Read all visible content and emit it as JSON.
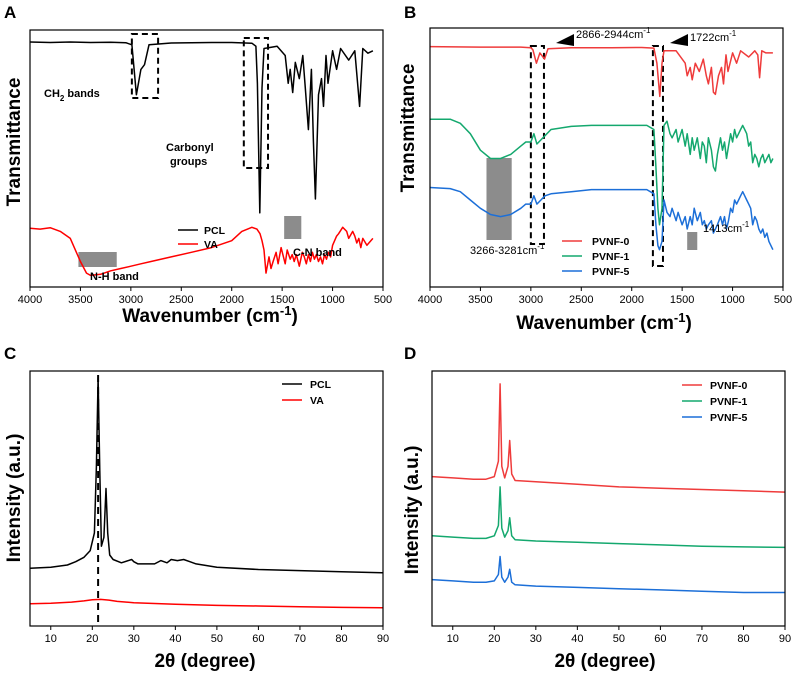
{
  "chart_data": [
    {
      "panel": "A",
      "type": "line",
      "title": "",
      "xlabel": "Wavenumber (cm-1)",
      "ylabel": "Transmittance",
      "xlim": [
        4000,
        500
      ],
      "xticks": [
        4000,
        3500,
        3000,
        2500,
        2000,
        1500,
        1000,
        500
      ],
      "yticks_shown": false,
      "legend": "bottom-right",
      "series": [
        {
          "name": "PCL",
          "color": "#000000",
          "x": [
            4000,
            3800,
            3600,
            3400,
            3200,
            3050,
            2990,
            2945,
            2900,
            2865,
            2820,
            2600,
            2200,
            2000,
            1800,
            1760,
            1745,
            1722,
            1700,
            1680,
            1550,
            1470,
            1440,
            1420,
            1395,
            1370,
            1330,
            1295,
            1270,
            1240,
            1210,
            1190,
            1170,
            1140,
            1110,
            1090,
            1065,
            1045,
            1000,
            960,
            920,
            840,
            780,
            732,
            700,
            650,
            600
          ],
          "values": [
            97.8,
            97.6,
            97.8,
            97.6,
            97.7,
            97.5,
            96.6,
            75.0,
            86.0,
            88.0,
            96.6,
            97.4,
            97.6,
            97.6,
            97.3,
            96.0,
            80.0,
            24.0,
            78.0,
            95.0,
            96.0,
            92.0,
            80.0,
            86.0,
            76.0,
            89.0,
            82.0,
            92.0,
            78.0,
            60.0,
            86.0,
            55.0,
            30.0,
            75.0,
            82.0,
            70.0,
            92.0,
            80.0,
            94.0,
            86.0,
            95.0,
            90.0,
            94.0,
            70.0,
            95.0,
            93.0,
            94.0
          ]
        },
        {
          "name": "VA",
          "color": "#ff0000",
          "x": [
            4000,
            3900,
            3800,
            3700,
            3600,
            3500,
            3440,
            3400,
            3300,
            3200,
            3100,
            3000,
            2900,
            2800,
            2600,
            2400,
            2200,
            2000,
            1900,
            1800,
            1750,
            1720,
            1700,
            1680,
            1660,
            1630,
            1610,
            1590,
            1560,
            1540,
            1510,
            1470,
            1450,
            1420,
            1400,
            1380,
            1360,
            1330,
            1300,
            1280,
            1260,
            1240,
            1220,
            1200,
            1180,
            1160,
            1140,
            1120,
            1100,
            1080,
            1060,
            1040,
            1020,
            1000,
            980,
            960,
            940,
            900,
            860,
            840,
            800,
            780,
            760,
            740,
            720,
            700,
            660,
            600
          ],
          "values": [
            17.4,
            17.0,
            17.6,
            16.0,
            13.0,
            3.0,
            -2.0,
            -3.0,
            -2.5,
            -1.0,
            0.0,
            1.0,
            2.0,
            3.0,
            5.0,
            7.0,
            9.0,
            12.0,
            16.0,
            17.8,
            17.0,
            15.0,
            12.0,
            8.0,
            -2.0,
            5.0,
            0.0,
            3.0,
            7.0,
            2.0,
            9.0,
            2.0,
            8.0,
            4.0,
            6.0,
            3.0,
            6.0,
            1.0,
            7.0,
            5.0,
            2.0,
            6.0,
            3.0,
            7.0,
            4.0,
            6.0,
            3.0,
            5.0,
            2.0,
            6.0,
            4.0,
            7.0,
            5.0,
            10.0,
            12.0,
            14.0,
            15.0,
            17.8,
            16.0,
            13.0,
            16.0,
            14.0,
            11.0,
            13.0,
            9.0,
            13.0,
            10.0,
            13.0
          ]
        }
      ],
      "annotations": {
        "ch2": "CH",
        "ch2_sub": "2",
        "ch2_rest": " bands",
        "carbonyl_1": "Carbonyl",
        "carbonyl_2": "groups",
        "nh": "N-H band",
        "cn": "C-N band"
      },
      "annotation_ranges": {
        "ch2_box_x": [
          2990,
          2730
        ],
        "carbonyl_box_x": [
          1880,
          1640
        ],
        "nh_x": [
          3520,
          3140
        ],
        "cn_x": [
          1480,
          1310
        ]
      }
    },
    {
      "panel": "B",
      "type": "line",
      "title": "",
      "xlabel": "Wavenumber (cm-1)",
      "ylabel": "Transmittance",
      "xlim": [
        4000,
        500
      ],
      "xticks": [
        4000,
        3500,
        3000,
        2500,
        2000,
        1500,
        1000,
        500
      ],
      "yticks_shown": false,
      "legend": "bottom-center",
      "series": [
        {
          "name": "PVNF-0",
          "color": "#ef3b3b",
          "x": [
            4000,
            3500,
            3100,
            3000,
            2980,
            2945,
            2910,
            2865,
            2830,
            2600,
            2200,
            1900,
            1780,
            1750,
            1722,
            1700,
            1680,
            1560,
            1470,
            1450,
            1420,
            1400,
            1370,
            1330,
            1290,
            1260,
            1240,
            1210,
            1190,
            1170,
            1140,
            1110,
            1090,
            1065,
            1045,
            1000,
            960,
            920,
            840,
            780,
            750,
            732,
            710,
            670,
            600
          ],
          "values": [
            98.0,
            97.8,
            97.8,
            97.5,
            96.5,
            90.0,
            95.0,
            92.0,
            97.0,
            97.5,
            97.5,
            97.6,
            97.3,
            90.0,
            74.0,
            90.0,
            96.0,
            96.0,
            90.0,
            84.0,
            88.0,
            82.0,
            90.0,
            86.0,
            92.0,
            84.0,
            80.0,
            88.0,
            76.0,
            75.0,
            84.0,
            88.0,
            80.0,
            94.0,
            86.0,
            95.0,
            90.0,
            96.0,
            93.0,
            96.0,
            94.0,
            83.0,
            96.0,
            95.0,
            95.0
          ]
        },
        {
          "name": "PVNF-1",
          "color": "#14a86e",
          "x": [
            4000,
            3800,
            3700,
            3600,
            3500,
            3400,
            3300,
            3200,
            3100,
            3050,
            3000,
            2970,
            2940,
            2900,
            2860,
            2800,
            2600,
            2400,
            2200,
            2000,
            1850,
            1780,
            1760,
            1740,
            1725,
            1700,
            1680,
            1650,
            1620,
            1600,
            1560,
            1540,
            1500,
            1470,
            1450,
            1420,
            1400,
            1380,
            1350,
            1320,
            1300,
            1280,
            1260,
            1240,
            1210,
            1190,
            1170,
            1150,
            1120,
            1100,
            1080,
            1060,
            1040,
            1020,
            1000,
            980,
            960,
            940,
            920,
            900,
            880,
            860,
            840,
            820,
            800,
            780,
            760,
            740,
            720,
            700,
            680,
            660,
            640,
            620,
            600
          ],
          "values": [
            63.0,
            63.0,
            61.0,
            56.0,
            48.0,
            44.0,
            44.0,
            46.0,
            50.0,
            52.0,
            52.0,
            56.0,
            51.0,
            53.0,
            55.0,
            58.0,
            59.5,
            60.0,
            60.0,
            60.0,
            60.0,
            58.0,
            40.0,
            20.0,
            12.0,
            20.0,
            60.0,
            62.0,
            56.0,
            54.0,
            58.0,
            52.0,
            58.0,
            50.0,
            56.0,
            46.0,
            54.0,
            48.0,
            54.0,
            44.0,
            52.0,
            50.0,
            42.0,
            54.0,
            48.0,
            40.0,
            38.0,
            46.0,
            54.0,
            48.0,
            52.0,
            44.0,
            50.0,
            56.0,
            52.0,
            58.0,
            54.0,
            56.0,
            58.0,
            60.0,
            58.0,
            56.0,
            50.0,
            52.0,
            42.0,
            46.0,
            44.0,
            40.0,
            44.0,
            46.0,
            42.0,
            44.0,
            46.0,
            42.0,
            44.0
          ]
        },
        {
          "name": "PVNF-5",
          "color": "#1c6fd8",
          "x": [
            4000,
            3800,
            3700,
            3600,
            3500,
            3400,
            3300,
            3200,
            3100,
            3050,
            3000,
            2970,
            2940,
            2900,
            2860,
            2800,
            2600,
            2400,
            2200,
            2000,
            1850,
            1780,
            1760,
            1740,
            1725,
            1700,
            1680,
            1650,
            1620,
            1600,
            1560,
            1540,
            1500,
            1470,
            1450,
            1420,
            1400,
            1380,
            1350,
            1320,
            1300,
            1280,
            1260,
            1240,
            1210,
            1190,
            1170,
            1150,
            1120,
            1100,
            1080,
            1060,
            1040,
            1020,
            1000,
            980,
            960,
            940,
            920,
            900,
            880,
            860,
            840,
            820,
            800,
            780,
            760,
            740,
            720,
            700,
            680,
            660,
            640,
            620,
            600
          ],
          "values": [
            30.0,
            29.5,
            28.0,
            24.0,
            20.0,
            17.0,
            16.0,
            17.0,
            20.0,
            22.0,
            22.0,
            26.0,
            22.0,
            24.0,
            26.0,
            27.0,
            28.0,
            29.0,
            29.0,
            29.0,
            29.0,
            27.0,
            12.0,
            2.0,
            0.0,
            4.0,
            24.0,
            18.0,
            16.0,
            20.0,
            14.0,
            18.0,
            12.0,
            16.0,
            10.0,
            16.0,
            12.0,
            20.0,
            14.0,
            18.0,
            12.0,
            14.0,
            10.0,
            12.0,
            14.0,
            8.0,
            10.0,
            12.0,
            16.0,
            12.0,
            16.0,
            10.0,
            14.0,
            20.0,
            18.0,
            24.0,
            22.0,
            24.0,
            26.0,
            28.0,
            26.0,
            24.0,
            22.0,
            20.0,
            12.0,
            16.0,
            14.0,
            10.0,
            8.0,
            10.0,
            6.0,
            8.0,
            4.0,
            2.0,
            0.0
          ]
        }
      ],
      "annotations": {
        "band1": "2866-2944cm",
        "band2": "1722cm",
        "band3": "3266-3281cm",
        "band4": "1413cm",
        "unit_sup": "-1"
      },
      "annotation_ranges": {
        "ch2_box_x": [
          3000,
          2870
        ],
        "carbonyl_box_x": [
          1790,
          1690
        ],
        "oh_x": [
          3440,
          3190
        ],
        "n_x": [
          1450,
          1350
        ]
      }
    },
    {
      "panel": "C",
      "type": "line",
      "title": "",
      "xlabel": "2θ (degree)",
      "ylabel": "Intensity (a.u.)",
      "xlim": [
        5,
        90
      ],
      "xticks": [
        10,
        20,
        30,
        40,
        50,
        60,
        70,
        80,
        90
      ],
      "yticks_shown": false,
      "legend": "top-right",
      "reference_line_x": 21.4,
      "series": [
        {
          "name": "PCL",
          "color": "#000000",
          "x": [
            5,
            10,
            14,
            16,
            18,
            19.5,
            20.5,
            21.0,
            21.4,
            21.8,
            22.2,
            22.8,
            23.3,
            23.7,
            24.2,
            25,
            27,
            29.5,
            30,
            31,
            35,
            36.5,
            38,
            39,
            40.5,
            42,
            43.5,
            45,
            50,
            60,
            70,
            80,
            90
          ],
          "values": [
            14.0,
            14.5,
            15.5,
            17.0,
            19.0,
            22.0,
            30.0,
            60.0,
            100.0,
            58.0,
            24.0,
            28.0,
            50.0,
            30.0,
            20.0,
            18.0,
            16.5,
            18.0,
            17.0,
            16.0,
            16.0,
            17.5,
            16.5,
            18.0,
            17.5,
            18.0,
            17.0,
            16.0,
            14.5,
            13.5,
            13.0,
            12.5,
            12.0
          ]
        },
        {
          "name": "VA",
          "color": "#ff0000",
          "x": [
            5,
            10,
            15,
            18,
            20,
            22,
            24,
            26,
            30,
            40,
            50,
            60,
            70,
            80,
            90
          ],
          "values": [
            -2.0,
            -1.7,
            -1.2,
            -0.7,
            -0.2,
            0.0,
            -0.3,
            -0.9,
            -1.5,
            -2.2,
            -2.7,
            -3.0,
            -3.3,
            -3.6,
            -3.8
          ]
        }
      ]
    },
    {
      "panel": "D",
      "type": "line",
      "title": "",
      "xlabel": "2θ (degree)",
      "ylabel": "Intensity (a.u.)",
      "xlim": [
        5,
        90
      ],
      "xticks": [
        10,
        20,
        30,
        40,
        50,
        60,
        70,
        80,
        90
      ],
      "yticks_shown": false,
      "legend": "top-right",
      "series": [
        {
          "name": "PVNF-0",
          "color": "#ef3b3b",
          "x": [
            5,
            10,
            15,
            18,
            20,
            21,
            21.4,
            21.8,
            22.5,
            23.3,
            23.7,
            24.2,
            25,
            30,
            40,
            50,
            60,
            70,
            80,
            90
          ],
          "values": [
            56.0,
            55.5,
            55.0,
            55.0,
            56.0,
            62.0,
            92.0,
            60.0,
            55.5,
            60.0,
            70.0,
            57.0,
            54.5,
            54.0,
            53.0,
            52.0,
            51.5,
            51.0,
            50.5,
            50.0
          ]
        },
        {
          "name": "PVNF-1",
          "color": "#14a86e",
          "x": [
            5,
            10,
            15,
            18,
            20,
            21,
            21.4,
            21.8,
            22.5,
            23.3,
            23.7,
            24.2,
            25,
            30,
            40,
            50,
            60,
            70,
            80,
            90
          ],
          "values": [
            33.0,
            32.5,
            32.0,
            32.0,
            33.0,
            37.0,
            52.0,
            36.0,
            32.5,
            35.0,
            40.0,
            33.0,
            31.5,
            31.0,
            30.5,
            30.0,
            29.5,
            29.0,
            28.7,
            28.5
          ]
        },
        {
          "name": "PVNF-5",
          "color": "#1c6fd8",
          "x": [
            5,
            10,
            15,
            18,
            20,
            21,
            21.4,
            21.8,
            22.5,
            23.3,
            23.7,
            24.2,
            25,
            30,
            40,
            50,
            60,
            70,
            80,
            90
          ],
          "values": [
            16.0,
            15.5,
            15.0,
            15.0,
            15.5,
            18.0,
            25.0,
            17.0,
            15.0,
            17.0,
            20.0,
            15.0,
            14.0,
            13.5,
            13.0,
            12.5,
            12.0,
            11.5,
            11.0,
            11.0
          ]
        }
      ]
    }
  ],
  "panel_labels": {
    "a": "A",
    "b": "B",
    "c": "C",
    "d": "D"
  }
}
